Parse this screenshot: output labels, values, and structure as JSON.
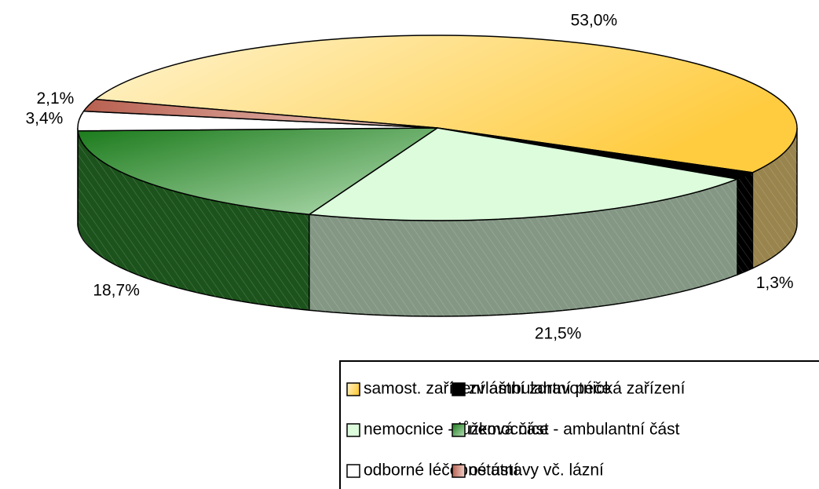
{
  "chart_data": {
    "type": "pie3d",
    "categories": [
      "samost. zařízení ambulantní péče",
      "zvláštní zdravotnická zařízení",
      "nemocnice - lůžková část",
      "nemocnice - ambulantní část",
      "odborné léčebné ústavy vč. lázní",
      "ostatní"
    ],
    "values": [
      53.0,
      1.3,
      21.5,
      18.7,
      3.4,
      2.1
    ],
    "value_labels": [
      "53,0%",
      "1,3%",
      "21,5%",
      "18,7%",
      "3,4%",
      "2,1%"
    ],
    "colors": [
      "#ffdc80",
      "#000000",
      "#dcfcdc",
      "#2e8b2e",
      "#ffffff",
      "#c88878"
    ],
    "legend": "bottom-right"
  }
}
